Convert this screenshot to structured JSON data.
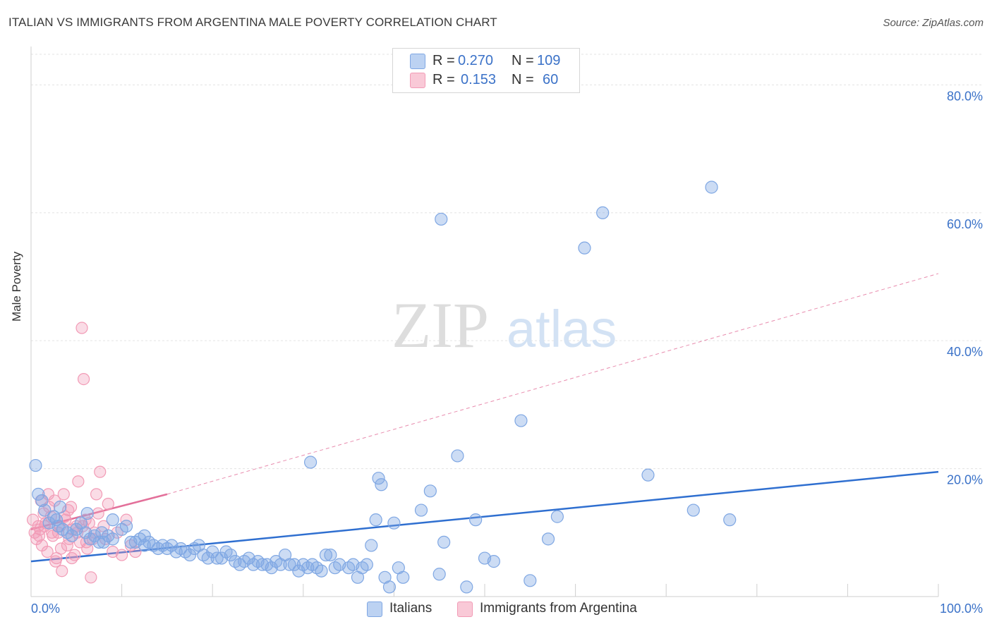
{
  "title": "ITALIAN VS IMMIGRANTS FROM ARGENTINA MALE POVERTY CORRELATION CHART",
  "source": "Source: ZipAtlas.com",
  "watermark": {
    "zip": "ZIP",
    "atlas": "atlas"
  },
  "legend": {
    "rows": [
      {
        "r_label": "R = ",
        "r_value": "0.270",
        "n_label": "N = ",
        "n_value": "109"
      },
      {
        "r_label": "R = ",
        "r_value": "0.153",
        "n_label": "N = ",
        "n_value": "60"
      }
    ]
  },
  "bottom_legend": {
    "italians": "Italians",
    "argentina": "Immigrants from Argentina"
  },
  "chart_data": {
    "type": "scatter",
    "title": "ITALIAN VS IMMIGRANTS FROM ARGENTINA MALE POVERTY CORRELATION CHART",
    "xlabel": "",
    "ylabel": "Male Poverty",
    "xlim": [
      0,
      100
    ],
    "ylim": [
      0,
      85
    ],
    "x_tick_labels": {
      "min": "0.0%",
      "max": "100.0%"
    },
    "y_ticks": [
      20,
      40,
      60,
      80
    ],
    "y_tick_labels": [
      "20.0%",
      "40.0%",
      "60.0%",
      "80.0%"
    ],
    "colors": {
      "italians": "#7fa7e3",
      "italians_line": "#2f6fd0",
      "argentina": "#f29bb6",
      "argentina_line": "#e3709a",
      "tick_text": "#3b72c8",
      "grid": "#e3e3e3"
    },
    "series": [
      {
        "name": "Italians",
        "R": 0.27,
        "N": 109,
        "trend": {
          "x": [
            0,
            100
          ],
          "y": [
            5.5,
            19.5
          ]
        },
        "points": [
          [
            0.5,
            20.5
          ],
          [
            0.8,
            16
          ],
          [
            1.5,
            13.5
          ],
          [
            2,
            11.5
          ],
          [
            2.5,
            12.5
          ],
          [
            3,
            11
          ],
          [
            3.5,
            10.5
          ],
          [
            4,
            10
          ],
          [
            4.5,
            9.5
          ],
          [
            5,
            10.5
          ],
          [
            5.5,
            11.5
          ],
          [
            6,
            10
          ],
          [
            6.5,
            9
          ],
          [
            7,
            9.5
          ],
          [
            7.5,
            8.5
          ],
          [
            8,
            8.5
          ],
          [
            8.5,
            9.5
          ],
          [
            9,
            9
          ],
          [
            10,
            10.5
          ],
          [
            10.5,
            11
          ],
          [
            11,
            8.5
          ],
          [
            11.5,
            8.5
          ],
          [
            12,
            9
          ],
          [
            12.5,
            8
          ],
          [
            13,
            8.5
          ],
          [
            13.5,
            8
          ],
          [
            14,
            7.5
          ],
          [
            14.5,
            8
          ],
          [
            15,
            7.5
          ],
          [
            15.5,
            8
          ],
          [
            16,
            7
          ],
          [
            16.5,
            7.5
          ],
          [
            17,
            7
          ],
          [
            17.5,
            6.5
          ],
          [
            18,
            7.5
          ],
          [
            18.5,
            8
          ],
          [
            19,
            6.5
          ],
          [
            19.5,
            6
          ],
          [
            20,
            7
          ],
          [
            20.5,
            6
          ],
          [
            21,
            6
          ],
          [
            21.5,
            7
          ],
          [
            22,
            6.5
          ],
          [
            22.5,
            5.5
          ],
          [
            23,
            5
          ],
          [
            23.5,
            5.5
          ],
          [
            24,
            6
          ],
          [
            24.5,
            5
          ],
          [
            25,
            5.5
          ],
          [
            25.5,
            5
          ],
          [
            26,
            5
          ],
          [
            26.5,
            4.5
          ],
          [
            27,
            5.5
          ],
          [
            27.5,
            5
          ],
          [
            28,
            6.5
          ],
          [
            28.5,
            5
          ],
          [
            29,
            5
          ],
          [
            29.5,
            4
          ],
          [
            30,
            5
          ],
          [
            30.5,
            4.5
          ],
          [
            31,
            5
          ],
          [
            31.5,
            4.5
          ],
          [
            32,
            4
          ],
          [
            32.5,
            6.5
          ],
          [
            33,
            6.5
          ],
          [
            33.5,
            4.5
          ],
          [
            34,
            5
          ],
          [
            35,
            4.5
          ],
          [
            35.5,
            5
          ],
          [
            36,
            3
          ],
          [
            36.5,
            4.5
          ],
          [
            37,
            5
          ],
          [
            37.5,
            8
          ],
          [
            38,
            12
          ],
          [
            38.3,
            18.5
          ],
          [
            38.6,
            17.5
          ],
          [
            39,
            3
          ],
          [
            39.5,
            1.5
          ],
          [
            40,
            11.5
          ],
          [
            40.5,
            4.5
          ],
          [
            41,
            3
          ],
          [
            43,
            13.5
          ],
          [
            44,
            16.5
          ],
          [
            45,
            3.5
          ],
          [
            45.5,
            8.5
          ],
          [
            47,
            22
          ],
          [
            48,
            1.5
          ],
          [
            49,
            12
          ],
          [
            50,
            6
          ],
          [
            51,
            5.5
          ],
          [
            54,
            27.5
          ],
          [
            55,
            2.5
          ],
          [
            57,
            9
          ],
          [
            58,
            12.5
          ],
          [
            63,
            60
          ],
          [
            61,
            54.5
          ],
          [
            75,
            64
          ],
          [
            68,
            19
          ],
          [
            73,
            13.5
          ],
          [
            77,
            12
          ],
          [
            1.2,
            15
          ],
          [
            2.8,
            12
          ],
          [
            3.2,
            14
          ],
          [
            6.2,
            13
          ],
          [
            9,
            12
          ],
          [
            7.8,
            10
          ],
          [
            12.5,
            9.5
          ],
          [
            45.2,
            59
          ],
          [
            30.8,
            21
          ]
        ]
      },
      {
        "name": "Immigrants from Argentina",
        "R": 0.153,
        "N": 60,
        "trend": {
          "x": [
            0,
            15
          ],
          "y": [
            10.5,
            16
          ]
        },
        "trend_extended": {
          "x": [
            15,
            100
          ],
          "y": [
            16,
            50.5
          ]
        },
        "points": [
          [
            0.2,
            12
          ],
          [
            0.4,
            10
          ],
          [
            0.6,
            9
          ],
          [
            0.8,
            11
          ],
          [
            1,
            10.5
          ],
          [
            1.2,
            8
          ],
          [
            1.4,
            13
          ],
          [
            1.6,
            11.5
          ],
          [
            1.8,
            7
          ],
          [
            2,
            14
          ],
          [
            2.2,
            12.5
          ],
          [
            2.4,
            9.5
          ],
          [
            2.6,
            15
          ],
          [
            2.8,
            6
          ],
          [
            3,
            10
          ],
          [
            3.2,
            11
          ],
          [
            3.4,
            4
          ],
          [
            3.6,
            16
          ],
          [
            3.8,
            12
          ],
          [
            4,
            8
          ],
          [
            4.2,
            9
          ],
          [
            4.4,
            14
          ],
          [
            4.6,
            10.5
          ],
          [
            4.8,
            6.5
          ],
          [
            5,
            11
          ],
          [
            5.2,
            18
          ],
          [
            5.4,
            8.5
          ],
          [
            5.6,
            42
          ],
          [
            5.8,
            34
          ],
          [
            6,
            12
          ],
          [
            6.2,
            7.5
          ],
          [
            6.4,
            11.5
          ],
          [
            6.6,
            3
          ],
          [
            6.8,
            9
          ],
          [
            7,
            10
          ],
          [
            7.2,
            16
          ],
          [
            7.4,
            13
          ],
          [
            7.6,
            19.5
          ],
          [
            8,
            11
          ],
          [
            8.2,
            9
          ],
          [
            8.5,
            14.5
          ],
          [
            9,
            7
          ],
          [
            9.5,
            10
          ],
          [
            10,
            6.5
          ],
          [
            10.5,
            12
          ],
          [
            11,
            8
          ],
          [
            11.5,
            7
          ],
          [
            1.1,
            15
          ],
          [
            1.9,
            16
          ],
          [
            2.7,
            5.5
          ],
          [
            3.3,
            7.5
          ],
          [
            4.1,
            13.5
          ],
          [
            5.1,
            10
          ],
          [
            6.1,
            8.5
          ],
          [
            0.9,
            9.5
          ],
          [
            1.5,
            11
          ],
          [
            2.3,
            10
          ],
          [
            3.7,
            12.5
          ],
          [
            4.5,
            6
          ],
          [
            5.7,
            11
          ]
        ]
      }
    ]
  }
}
